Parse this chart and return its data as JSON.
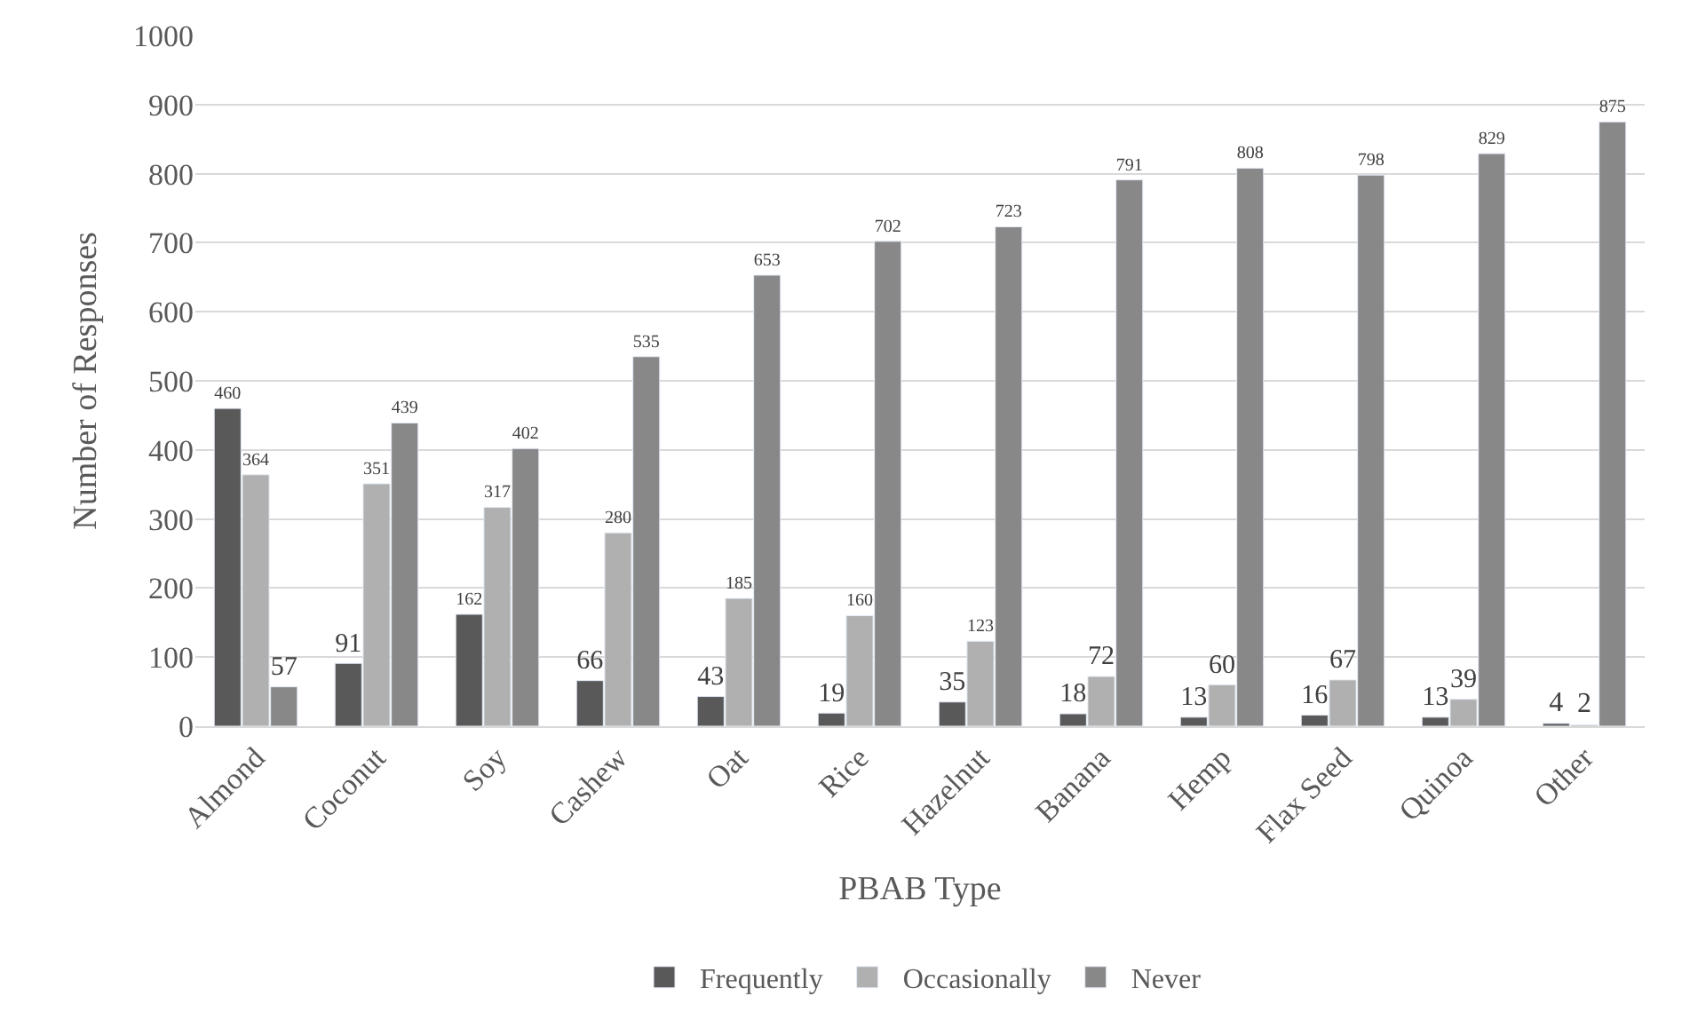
{
  "chart_data": {
    "type": "bar",
    "xlabel": "PBAB Type",
    "ylabel": "Number of Responses",
    "categories": [
      "Almond",
      "Coconut",
      "Soy",
      "Cashew",
      "Oat",
      "Rice",
      "Hazelnut",
      "Banana",
      "Hemp",
      "Flax Seed",
      "Quinoa",
      "Other"
    ],
    "series": [
      {
        "name": "Frequently",
        "color": "#595959",
        "values": [
          460,
          91,
          162,
          66,
          43,
          19,
          35,
          18,
          13,
          16,
          13,
          4
        ]
      },
      {
        "name": "Occasionally",
        "color": "#b0b0b0",
        "values": [
          364,
          351,
          317,
          280,
          185,
          160,
          123,
          72,
          60,
          67,
          39,
          2
        ]
      },
      {
        "name": "Never",
        "color": "#888888",
        "values": [
          57,
          439,
          402,
          535,
          653,
          702,
          723,
          791,
          808,
          798,
          829,
          875
        ]
      }
    ],
    "ylim": [
      0,
      1000
    ],
    "yticks": [
      0,
      100,
      200,
      300,
      400,
      500,
      600,
      700,
      800,
      900,
      1000
    ],
    "grid": "y",
    "legend": "bottom",
    "data_labels": true
  }
}
